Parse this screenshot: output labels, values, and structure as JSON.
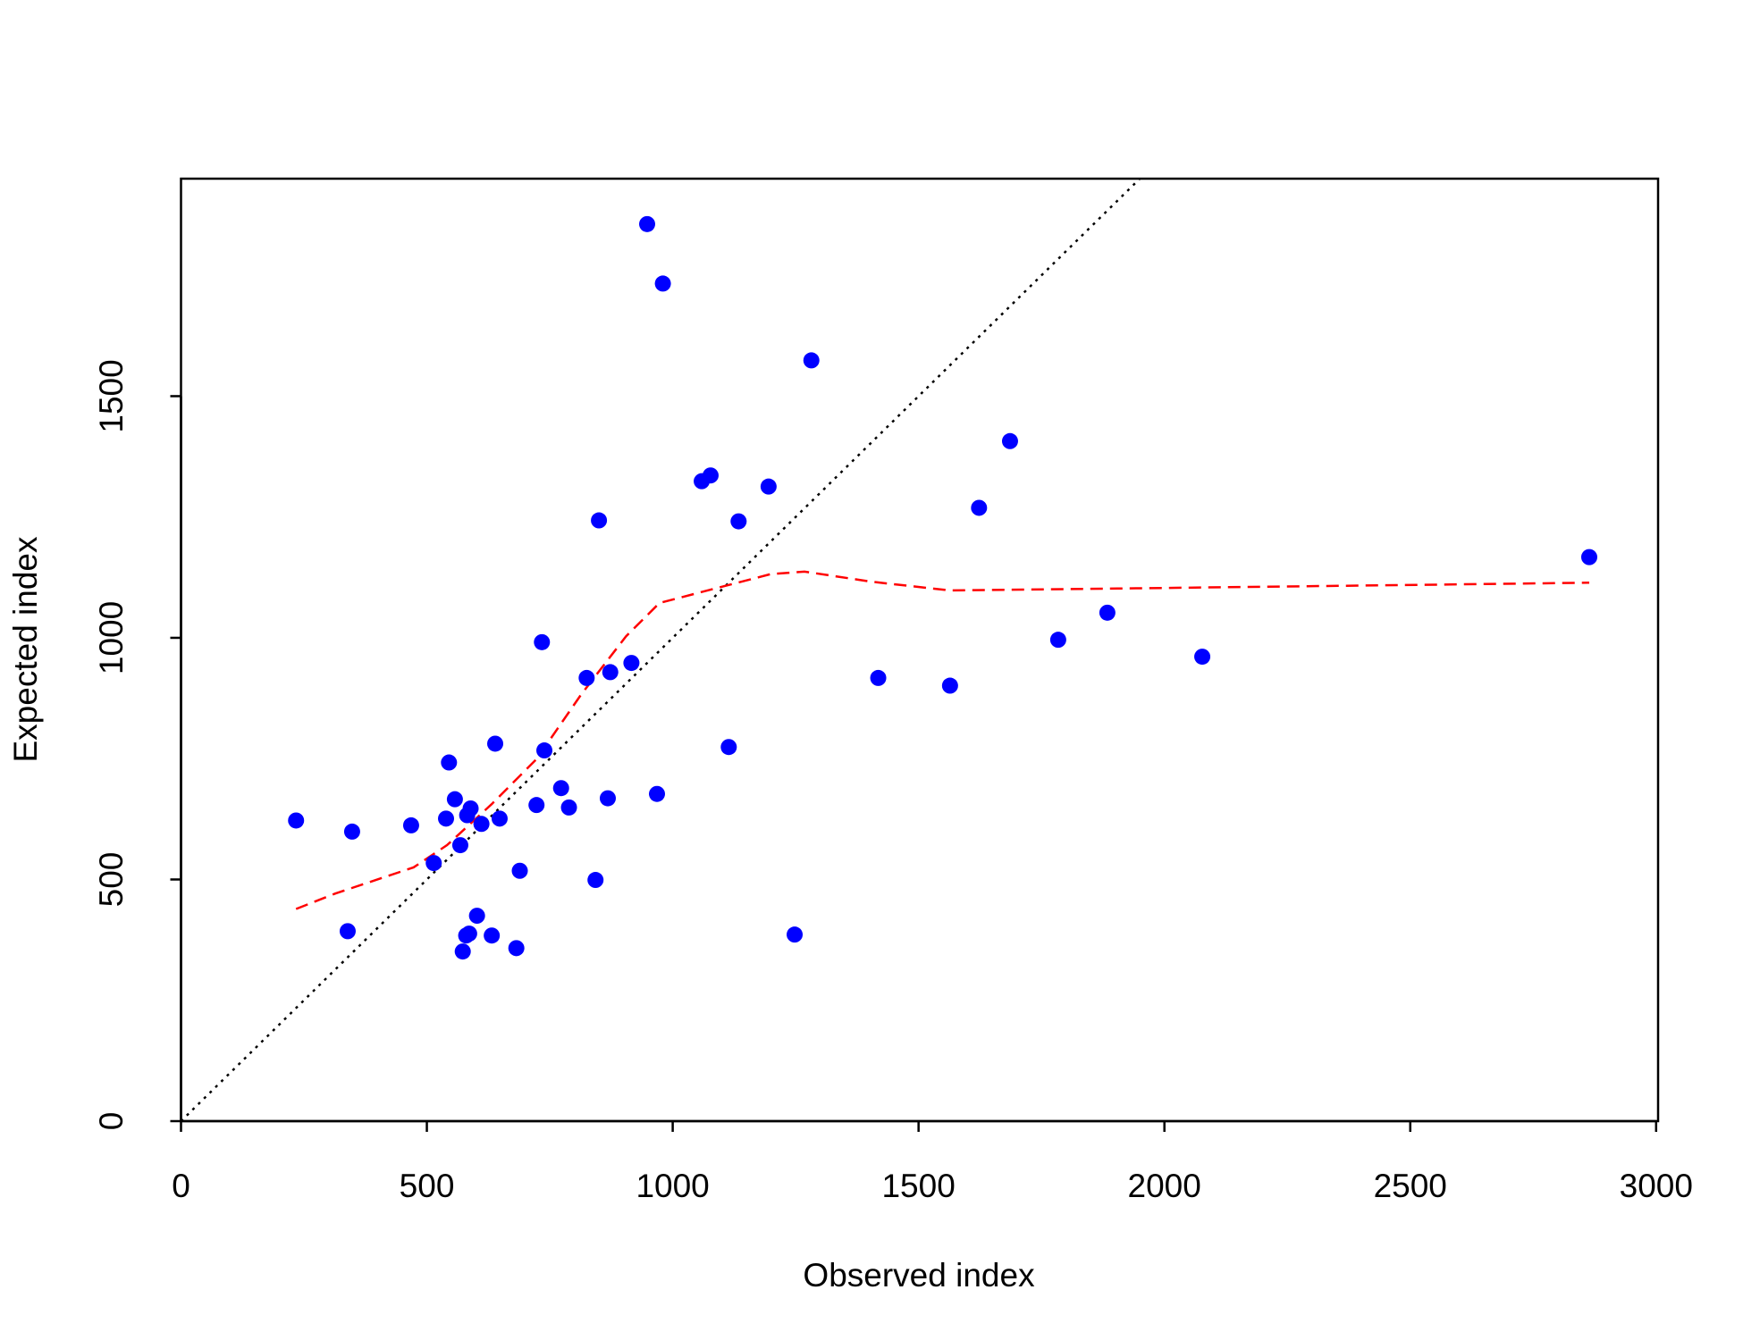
{
  "chart_data": {
    "type": "scatter",
    "x_label": "Observed index",
    "y_label": "Expected index",
    "xlim": [
      0,
      3004
    ],
    "ylim": [
      0,
      1950
    ],
    "xticks": [
      0,
      500,
      1000,
      1500,
      2000,
      2500,
      3000
    ],
    "yticks": [
      0,
      500,
      1000,
      1500
    ],
    "identity_line": true,
    "points": {
      "color": "#0000ff",
      "x": [
        234,
        339,
        348,
        468,
        514,
        539,
        545,
        557,
        568,
        573,
        580,
        586,
        582,
        589,
        602,
        611,
        632,
        639,
        648,
        682,
        689,
        723,
        734,
        739,
        773,
        789,
        825,
        843,
        850,
        868,
        873,
        916,
        948,
        968,
        980,
        1059,
        1077,
        1114,
        1134,
        1195,
        1248,
        1282,
        1418,
        1564,
        1623,
        1686,
        1784,
        1884,
        2077,
        2864
      ],
      "y": [
        622,
        393,
        599,
        612,
        534,
        626,
        742,
        666,
        571,
        351,
        384,
        388,
        633,
        647,
        425,
        615,
        384,
        781,
        626,
        358,
        518,
        654,
        991,
        767,
        689,
        649,
        917,
        499,
        1243,
        668,
        929,
        948,
        1856,
        677,
        1733,
        1324,
        1336,
        774,
        1241,
        1313,
        386,
        1574,
        917,
        901,
        1269,
        1407,
        996,
        1052,
        961,
        1167
      ]
    },
    "smooth": {
      "color": "#ff0000",
      "x": [
        234,
        314,
        473,
        541,
        632,
        723,
        814,
        905,
        973,
        1086,
        1200,
        1268,
        1405,
        1564,
        1905,
        2473,
        2864
      ],
      "y": [
        439,
        471,
        525,
        571,
        656,
        749,
        883,
        1003,
        1072,
        1102,
        1132,
        1137,
        1116,
        1098,
        1102,
        1109,
        1114
      ]
    }
  }
}
